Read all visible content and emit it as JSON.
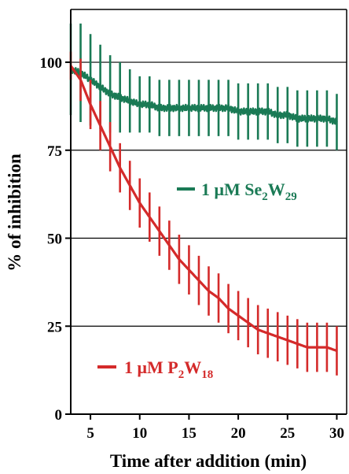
{
  "chart_data": {
    "type": "line",
    "xlabel": "Time after addition (min)",
    "ylabel": "% of inhibition",
    "xlim": [
      3,
      31
    ],
    "ylim": [
      0,
      115
    ],
    "xticks": [
      5,
      10,
      15,
      20,
      25,
      30
    ],
    "xtick_labels": [
      "5",
      "10",
      "15",
      "20",
      "25",
      "30"
    ],
    "yticks": [
      0,
      25,
      50,
      75,
      100
    ],
    "ytick_labels": [
      "0",
      "25",
      "50",
      "75",
      "100"
    ],
    "grid": "horizontal",
    "series": [
      {
        "name": "1 μM Se2W29",
        "legend_prefix": "1 μM Se",
        "legend_sub1": "2",
        "legend_mid": "W",
        "legend_sub2": "29",
        "color": "#1a7a55",
        "x": [
          3,
          4,
          5,
          6,
          7,
          8,
          9,
          10,
          11,
          12,
          13,
          14,
          15,
          16,
          17,
          18,
          19,
          20,
          21,
          22,
          23,
          24,
          25,
          26,
          27,
          28,
          29,
          30
        ],
        "y": [
          98,
          97,
          95,
          93,
          91,
          90,
          89,
          88,
          88,
          87,
          87,
          87,
          87,
          87,
          87,
          87,
          87,
          86,
          86,
          86,
          86,
          85,
          85,
          84,
          84,
          84,
          84,
          83
        ],
        "error": [
          13,
          14,
          13,
          12,
          11,
          10,
          9,
          8,
          8,
          8,
          8,
          8,
          8,
          8,
          8,
          8,
          8,
          8,
          8,
          8,
          8,
          8,
          8,
          8,
          8,
          8,
          8,
          8
        ]
      },
      {
        "name": "1 μM P2W18",
        "legend_prefix": "1 μM P",
        "legend_sub1": "2",
        "legend_mid": "W",
        "legend_sub2": "18",
        "color": "#d42a2a",
        "x": [
          3,
          4,
          5,
          6,
          7,
          8,
          9,
          10,
          11,
          12,
          13,
          14,
          15,
          16,
          17,
          18,
          19,
          20,
          21,
          22,
          23,
          24,
          25,
          26,
          27,
          28,
          29,
          30
        ],
        "y": [
          99,
          95,
          88,
          82,
          76,
          70,
          65,
          60,
          56,
          52,
          48,
          44,
          41,
          38,
          35,
          33,
          30,
          28,
          26,
          24,
          23,
          22,
          21,
          20,
          19,
          19,
          19,
          18
        ],
        "error": [
          4,
          6,
          7,
          7,
          7,
          7,
          7,
          7,
          7,
          7,
          7,
          7,
          7,
          7,
          7,
          7,
          7,
          7,
          7,
          7,
          7,
          7,
          7,
          7,
          7,
          7,
          7,
          7
        ]
      }
    ]
  }
}
